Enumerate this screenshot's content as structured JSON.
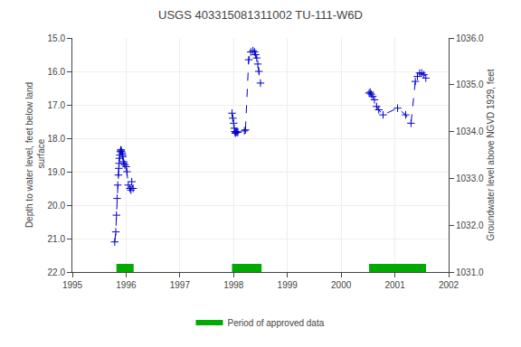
{
  "chart_data": {
    "type": "line",
    "title": "USGS 403315081311002 TU-111-W6D",
    "ylabel": "Depth to water level, feet below land\n surface",
    "y2label": "Groundwater level above NGVD 1929, feet",
    "xlim": [
      1995,
      2002
    ],
    "xticks": [
      1995,
      1996,
      1997,
      1998,
      1999,
      2000,
      2001,
      2002
    ],
    "ylim": [
      22.0,
      15.0
    ],
    "yticks": [
      {
        "value": 15.0,
        "label": "15.0"
      },
      {
        "value": 16.0,
        "label": "16.0"
      },
      {
        "value": 17.0,
        "label": "17.0"
      },
      {
        "value": 18.0,
        "label": "18.0"
      },
      {
        "value": 19.0,
        "label": "19.0"
      },
      {
        "value": 20.0,
        "label": "20.0"
      },
      {
        "value": 21.0,
        "label": "21.0"
      },
      {
        "value": 22.0,
        "label": "22.0"
      }
    ],
    "y2lim": [
      1031.0,
      1036.0
    ],
    "y2ticks": [
      {
        "value": 1036.0,
        "label": "1036.0"
      },
      {
        "value": 1035.0,
        "label": "1035.0"
      },
      {
        "value": 1034.0,
        "label": "1034.0"
      },
      {
        "value": 1033.0,
        "label": "1033.0"
      },
      {
        "value": 1032.0,
        "label": "1032.0"
      },
      {
        "value": 1031.0,
        "label": "1031.0"
      }
    ],
    "grid": true,
    "legend": "bottom",
    "series": [
      {
        "type": "line",
        "color": "#0000cc",
        "marker": "plus",
        "line_style": "dashed",
        "x": [
          1995.788,
          1995.808,
          1995.82,
          1995.832,
          1995.845,
          1995.857,
          1995.863,
          1995.87,
          1995.876,
          1995.885,
          1995.893,
          1995.9,
          1995.907,
          1995.915,
          1995.925,
          1995.932,
          1995.94,
          1995.95,
          1995.96,
          1995.975,
          1996.0,
          1996.015,
          1996.04,
          1996.07,
          1996.09,
          1996.105,
          1996.13,
          null,
          1997.97,
          1997.985,
          1998.0,
          1998.012,
          1998.022,
          1998.032,
          1998.042,
          1998.052,
          1998.065,
          1998.08,
          1998.2,
          1998.22,
          1998.28,
          1998.32,
          1998.36,
          1998.39,
          1998.41,
          1998.43,
          1998.45,
          1998.47,
          1998.5,
          null,
          2000.52,
          2000.54,
          2000.56,
          2000.59,
          2000.62,
          2000.66,
          2000.7,
          2000.78,
          2001.05,
          2001.2,
          2001.3,
          2001.38,
          2001.42,
          2001.46,
          2001.5,
          2001.54,
          2001.575
        ],
        "values": [
          21.1,
          20.8,
          20.3,
          19.8,
          19.4,
          19.1,
          18.9,
          18.75,
          18.6,
          18.5,
          18.4,
          18.35,
          18.35,
          18.4,
          18.45,
          18.5,
          18.55,
          18.7,
          18.75,
          18.8,
          18.85,
          19.0,
          19.4,
          19.5,
          19.55,
          19.3,
          19.5,
          null,
          17.25,
          17.4,
          17.55,
          17.7,
          17.8,
          17.85,
          17.82,
          17.8,
          17.82,
          17.82,
          17.78,
          17.75,
          15.65,
          15.42,
          15.38,
          15.42,
          15.5,
          15.6,
          15.78,
          16.0,
          16.35,
          null,
          16.65,
          16.62,
          16.68,
          16.75,
          16.85,
          17.05,
          17.15,
          17.3,
          17.1,
          17.3,
          17.55,
          16.3,
          16.15,
          16.05,
          16.05,
          16.1,
          16.2
        ]
      },
      {
        "type": "band",
        "name": "Period of approved data",
        "color": "#00aa00",
        "ranges": [
          [
            1995.82,
            1996.14
          ],
          [
            1997.97,
            1998.52
          ],
          [
            2000.52,
            2001.58
          ]
        ]
      }
    ]
  }
}
